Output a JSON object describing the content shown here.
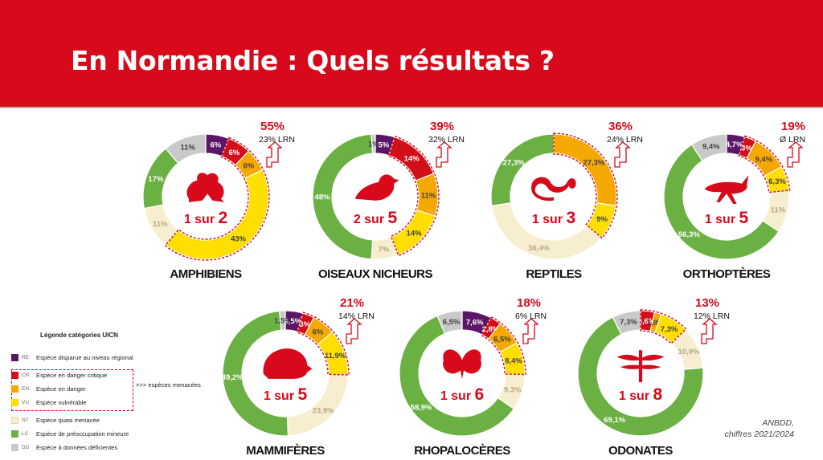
{
  "page": {
    "title": "En Normandie : Quels résultats ?"
  },
  "colors": {
    "RE": "#5c1668",
    "CR": "#d20f19",
    "EN": "#f5a800",
    "VU": "#ffde00",
    "NT": "#f7eed0",
    "LC": "#6ab043",
    "DD": "#c9c9c9",
    "accent": "#d7091a"
  },
  "legend": {
    "title": "Légende catégories UICN",
    "items": [
      {
        "code": "RE",
        "label": "Espèce disparue au niveau régional"
      },
      {
        "code": "CR",
        "label": "Espèce en danger critique"
      },
      {
        "code": "EN",
        "label": "Espèce en danger"
      },
      {
        "code": "VU",
        "label": "Espèce vulnérable"
      },
      {
        "code": "NT",
        "label": "Espèce quasi menacée"
      },
      {
        "code": "LC",
        "label": "Espèce de préoccupation mineure"
      },
      {
        "code": "DD",
        "label": "Espèce à données déficientes"
      }
    ],
    "threatened_label": ">>> espèces menacées"
  },
  "source": {
    "line1": "ANBDD,",
    "line2": "chiffres 2021/2024"
  },
  "chart_data": [
    {
      "type": "pie",
      "name": "AMPHIBIENS",
      "ratio": [
        "1 sur",
        "2"
      ],
      "icon": "frog-icon",
      "threatened_pct": "55%",
      "lrn": "23% LRN",
      "slices": [
        {
          "cat": "RE",
          "value": 6,
          "label": "6%"
        },
        {
          "cat": "CR",
          "value": 6,
          "label": "6%"
        },
        {
          "cat": "EN",
          "value": 6,
          "label": "6%"
        },
        {
          "cat": "VU",
          "value": 43,
          "label": "43%"
        },
        {
          "cat": "NT",
          "value": 11,
          "label": "11%"
        },
        {
          "cat": "LC",
          "value": 17,
          "label": "17%"
        },
        {
          "cat": "DD",
          "value": 11,
          "label": "11%"
        }
      ]
    },
    {
      "type": "pie",
      "name": "OISEAUX NICHEURS",
      "ratio": [
        "2 sur",
        "5"
      ],
      "icon": "bird-icon",
      "threatened_pct": "39%",
      "lrn": "32% LRN",
      "slices": [
        {
          "cat": "RE",
          "value": 5,
          "label": "5%"
        },
        {
          "cat": "CR",
          "value": 14,
          "label": "14%"
        },
        {
          "cat": "EN",
          "value": 11,
          "label": "11%"
        },
        {
          "cat": "VU",
          "value": 14,
          "label": "14%"
        },
        {
          "cat": "NT",
          "value": 7,
          "label": "7%"
        },
        {
          "cat": "LC",
          "value": 48,
          "label": "48%"
        },
        {
          "cat": "DD",
          "value": 1,
          "label": "1%"
        }
      ]
    },
    {
      "type": "pie",
      "name": "REPTILES",
      "ratio": [
        "1 sur",
        "3"
      ],
      "icon": "snake-icon",
      "threatened_pct": "36%",
      "lrn": "24% LRN",
      "slices": [
        {
          "cat": "EN",
          "value": 27.3,
          "label": "27,3%"
        },
        {
          "cat": "VU",
          "value": 9,
          "label": "9%"
        },
        {
          "cat": "NT",
          "value": 36.4,
          "label": "36,4%"
        },
        {
          "cat": "LC",
          "value": 27.3,
          "label": "27,3%"
        }
      ]
    },
    {
      "type": "pie",
      "name": "ORTHOPTÈRES",
      "ratio": [
        "1 sur",
        "5"
      ],
      "icon": "grasshopper-icon",
      "threatened_pct": "19%",
      "lrn": "Ø LRN",
      "slices": [
        {
          "cat": "RE",
          "value": 4.7,
          "label": "4,7%"
        },
        {
          "cat": "CR",
          "value": 3,
          "label": "3%"
        },
        {
          "cat": "EN",
          "value": 9.4,
          "label": "9,4%"
        },
        {
          "cat": "VU",
          "value": 6.3,
          "label": "6,3%"
        },
        {
          "cat": "NT",
          "value": 11,
          "label": "11%"
        },
        {
          "cat": "LC",
          "value": 56.3,
          "label": "56,3%"
        },
        {
          "cat": "DD",
          "value": 9.4,
          "label": "9,4%"
        }
      ]
    },
    {
      "type": "pie",
      "name": "MAMMIFÈRES",
      "ratio": [
        "1 sur",
        "5"
      ],
      "icon": "hedgehog-icon",
      "threatened_pct": "21%",
      "lrn": "14% LRN",
      "slices": [
        {
          "cat": "RE",
          "value": 4.5,
          "label": "4,5%"
        },
        {
          "cat": "CR",
          "value": 3,
          "label": "3%"
        },
        {
          "cat": "EN",
          "value": 6,
          "label": "6%"
        },
        {
          "cat": "VU",
          "value": 11.9,
          "label": "11,9%"
        },
        {
          "cat": "NT",
          "value": 23.9,
          "label": "23,9%"
        },
        {
          "cat": "LC",
          "value": 49.2,
          "label": "49,2%"
        },
        {
          "cat": "DD",
          "value": 1.5,
          "label": "1,5%"
        }
      ]
    },
    {
      "type": "pie",
      "name": "RHOPALOCÈRES",
      "ratio": [
        "1 sur",
        "6"
      ],
      "icon": "butterfly-icon",
      "threatened_pct": "18%",
      "lrn": "6% LRN",
      "slices": [
        {
          "cat": "RE",
          "value": 7.6,
          "label": "7,6%"
        },
        {
          "cat": "CR",
          "value": 2.8,
          "label": "2,8%"
        },
        {
          "cat": "EN",
          "value": 6.5,
          "label": "6,5%"
        },
        {
          "cat": "VU",
          "value": 8.4,
          "label": "8,4%"
        },
        {
          "cat": "NT",
          "value": 9.3,
          "label": "9,3%"
        },
        {
          "cat": "LC",
          "value": 58.9,
          "label": "58,9%"
        },
        {
          "cat": "DD",
          "value": 6.5,
          "label": "6,5%"
        }
      ]
    },
    {
      "type": "pie",
      "name": "ODONATES",
      "ratio": [
        "1 sur",
        "8"
      ],
      "icon": "dragonfly-icon",
      "threatened_pct": "13%",
      "lrn": "12% LRN",
      "slices": [
        {
          "cat": "CR",
          "value": 3.6,
          "label": "3,6%"
        },
        {
          "cat": "EN",
          "value": 1.8,
          "label": "1,8%"
        },
        {
          "cat": "VU",
          "value": 7.3,
          "label": "7,3%"
        },
        {
          "cat": "NT",
          "value": 10.9,
          "label": "10,9%"
        },
        {
          "cat": "LC",
          "value": 69.1,
          "label": "69,1%"
        },
        {
          "cat": "DD",
          "value": 7.3,
          "label": "7,3%"
        }
      ]
    }
  ]
}
